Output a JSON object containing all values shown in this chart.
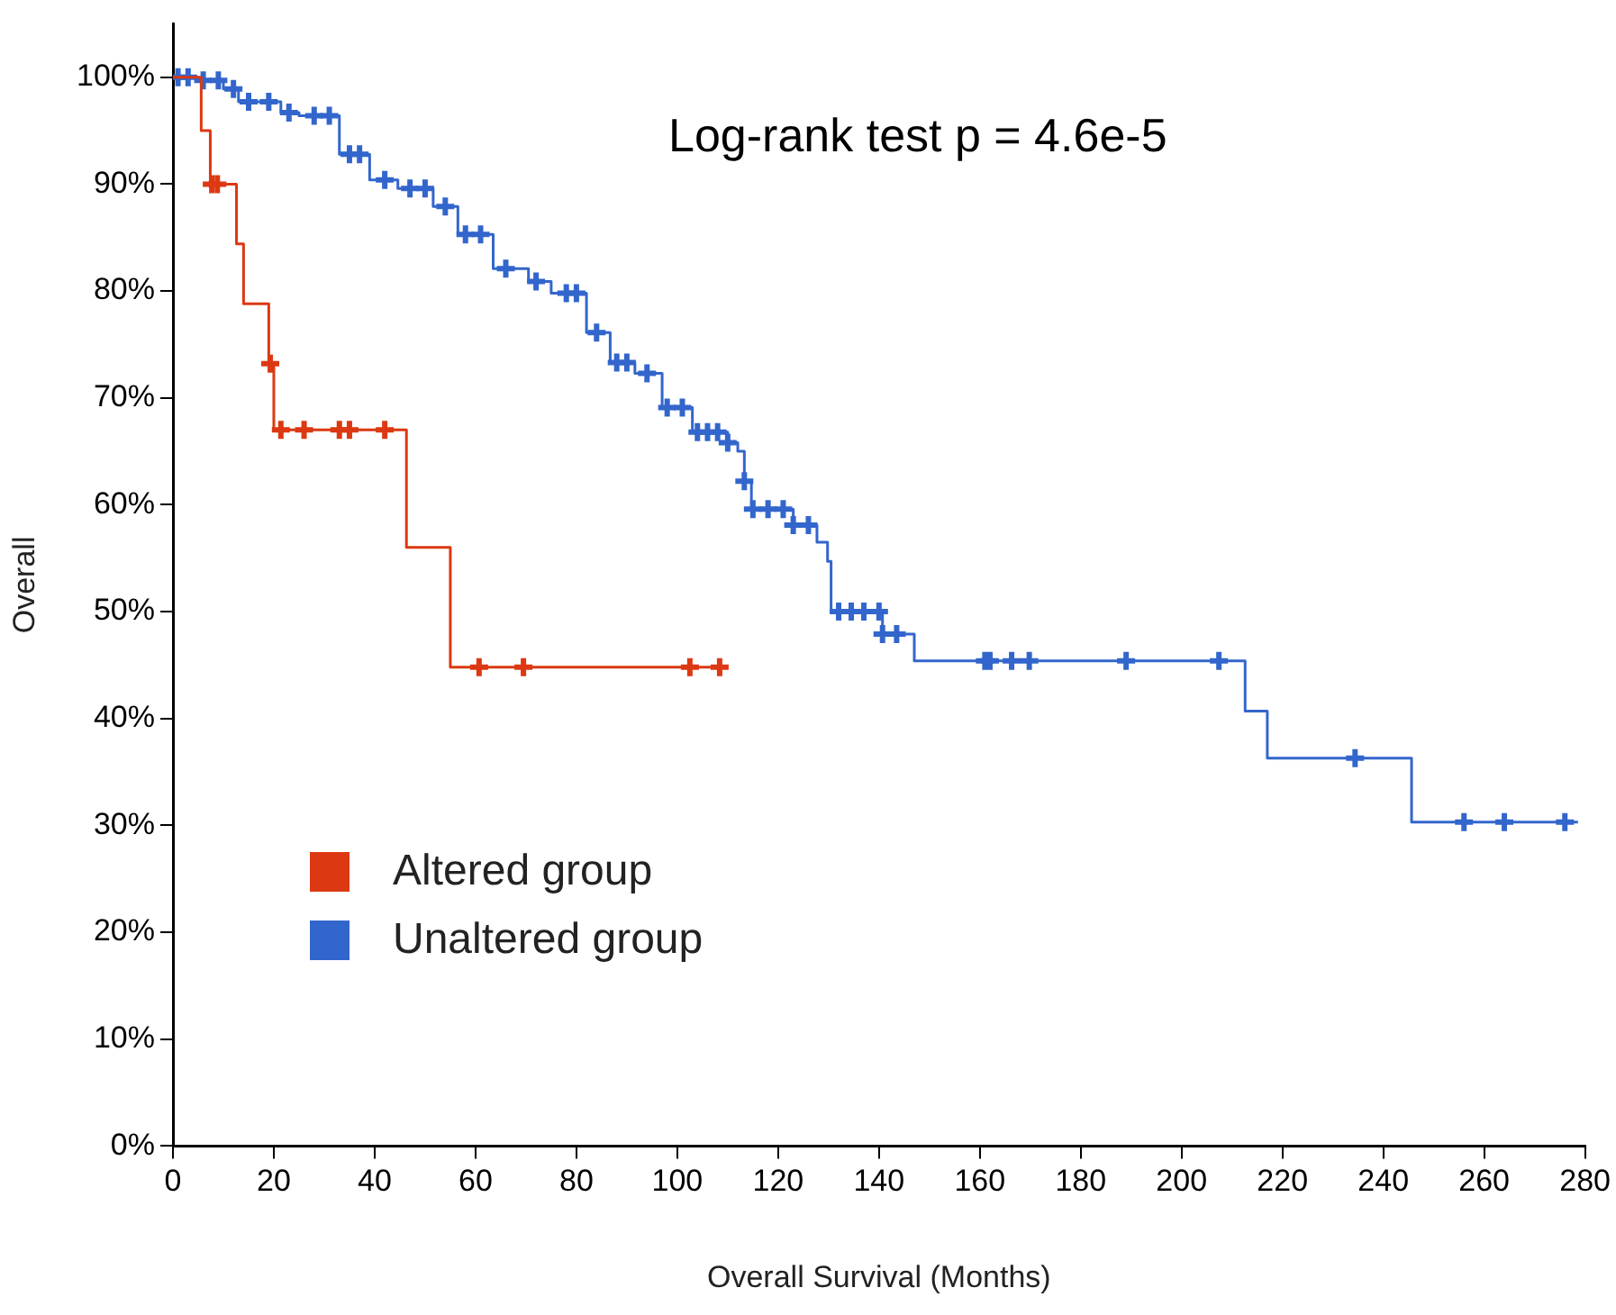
{
  "chart_data": {
    "type": "step",
    "xlabel": "Overall Survival (Months)",
    "ylabel": "Overall",
    "annotations": [
      "Log-rank test p = 4.6e-5"
    ],
    "xlim": [
      0,
      280
    ],
    "xticks": [
      0,
      20,
      40,
      60,
      80,
      100,
      120,
      140,
      160,
      180,
      200,
      220,
      240,
      260,
      280
    ],
    "ylim": [
      0,
      105
    ],
    "yticks": [
      {
        "value": 0,
        "label": "0%"
      },
      {
        "value": 10,
        "label": "10%"
      },
      {
        "value": 20,
        "label": "20%"
      },
      {
        "value": 30,
        "label": "30%"
      },
      {
        "value": 40,
        "label": "40%"
      },
      {
        "value": 50,
        "label": "50%"
      },
      {
        "value": 60,
        "label": "60%"
      },
      {
        "value": 70,
        "label": "70%"
      },
      {
        "value": 80,
        "label": "80%"
      },
      {
        "value": 90,
        "label": "90%"
      },
      {
        "value": 100,
        "label": "100%"
      }
    ],
    "grid": false,
    "legend": "bottom left",
    "line_style": "solid",
    "series": [
      {
        "name": "Altered group",
        "color": "#dc3912",
        "x": [
          0,
          5.6,
          7.4,
          12.6,
          14,
          19,
          20,
          46.3,
          55,
          108.4
        ],
        "values": [
          100,
          95,
          90,
          84.4,
          78.8,
          73.2,
          67,
          56,
          44.8,
          44.8
        ]
      },
      {
        "name": "Unaltered group",
        "color": "#3366cc",
        "x": [
          0,
          4.9,
          10,
          13,
          21.4,
          25,
          33,
          39,
          44.6,
          51.6,
          56.5,
          63.5,
          70.5,
          75,
          82,
          86.7,
          91.6,
          97,
          103,
          110,
          112,
          113.3,
          114.7,
          123,
          127.7,
          129.8,
          130.5,
          140.7,
          147,
          212.6,
          217,
          245.6,
          278.6
        ],
        "values": [
          100,
          99.7,
          98.9,
          97.7,
          96.7,
          96.4,
          92.8,
          90.4,
          89.6,
          87.9,
          85.3,
          82.1,
          80.9,
          79.8,
          76.1,
          73.3,
          72.3,
          69.1,
          66.8,
          65.8,
          65,
          62.2,
          59.6,
          58.1,
          56.5,
          54.7,
          50,
          47.9,
          45.4,
          40.7,
          36.3,
          30.3,
          30.3
        ]
      },
      {
        "type": "scatter",
        "color": "#dc3912",
        "marker": "cross",
        "x": [
          7.7,
          8.8,
          19.3,
          21.4,
          26,
          33,
          35,
          42,
          60.7,
          69.5,
          102.5,
          108.4
        ],
        "values": [
          90,
          90,
          73.2,
          67,
          67,
          67,
          67,
          67,
          44.8,
          44.8,
          44.8,
          44.8
        ]
      },
      {
        "type": "scatter",
        "color": "#3366cc",
        "marker": "cross",
        "x": [
          1,
          3,
          6,
          9,
          12,
          15,
          19,
          23,
          28,
          31,
          35,
          37,
          42,
          47,
          50,
          54,
          58,
          61,
          66,
          72,
          78,
          80,
          84,
          88,
          90,
          94,
          98,
          101,
          104,
          106,
          108,
          110,
          113.3,
          115,
          118,
          121,
          123,
          126,
          132,
          134.5,
          137,
          140,
          140.7,
          143.5,
          161,
          162,
          166.3,
          169.8,
          189,
          207.4,
          234.4,
          256,
          264,
          276
        ],
        "values": [
          100,
          100,
          99.7,
          99.7,
          98.9,
          97.7,
          97.7,
          96.7,
          96.4,
          96.4,
          92.8,
          92.8,
          90.4,
          89.6,
          89.6,
          87.9,
          85.3,
          85.3,
          82.1,
          80.9,
          79.8,
          79.8,
          76.1,
          73.3,
          73.3,
          72.3,
          69.1,
          69.1,
          66.8,
          66.8,
          66.8,
          65.8,
          62.2,
          59.6,
          59.6,
          59.6,
          58.1,
          58.1,
          50,
          50,
          50,
          50,
          47.9,
          47.9,
          45.4,
          45.4,
          45.4,
          45.4,
          45.4,
          45.4,
          36.3,
          30.3,
          30.3,
          30.3
        ]
      }
    ]
  }
}
